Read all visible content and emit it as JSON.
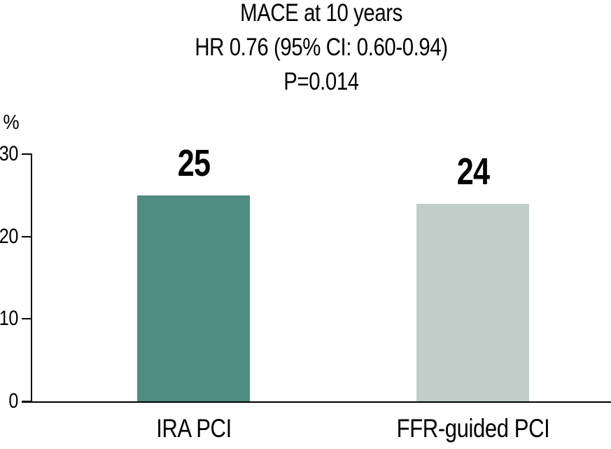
{
  "chart_data": {
    "type": "bar",
    "title": "MACE at 10 years",
    "subtitles": [
      "HR 0.76 (95% CI: 0.60-0.94)",
      "P=0.014"
    ],
    "categories": [
      "IRA PCI",
      "FFR-guided PCI"
    ],
    "values": [
      25,
      24
    ],
    "bar_colors": [
      "#4f8d80",
      "#c0cdc9"
    ],
    "ylabel": "%",
    "ylim": [
      0,
      30
    ],
    "yticks": [
      0,
      10,
      20,
      30
    ],
    "grid": false,
    "legend": "none",
    "axis_color": "#000000",
    "text_color": "#000000",
    "background": "#ffffff"
  }
}
